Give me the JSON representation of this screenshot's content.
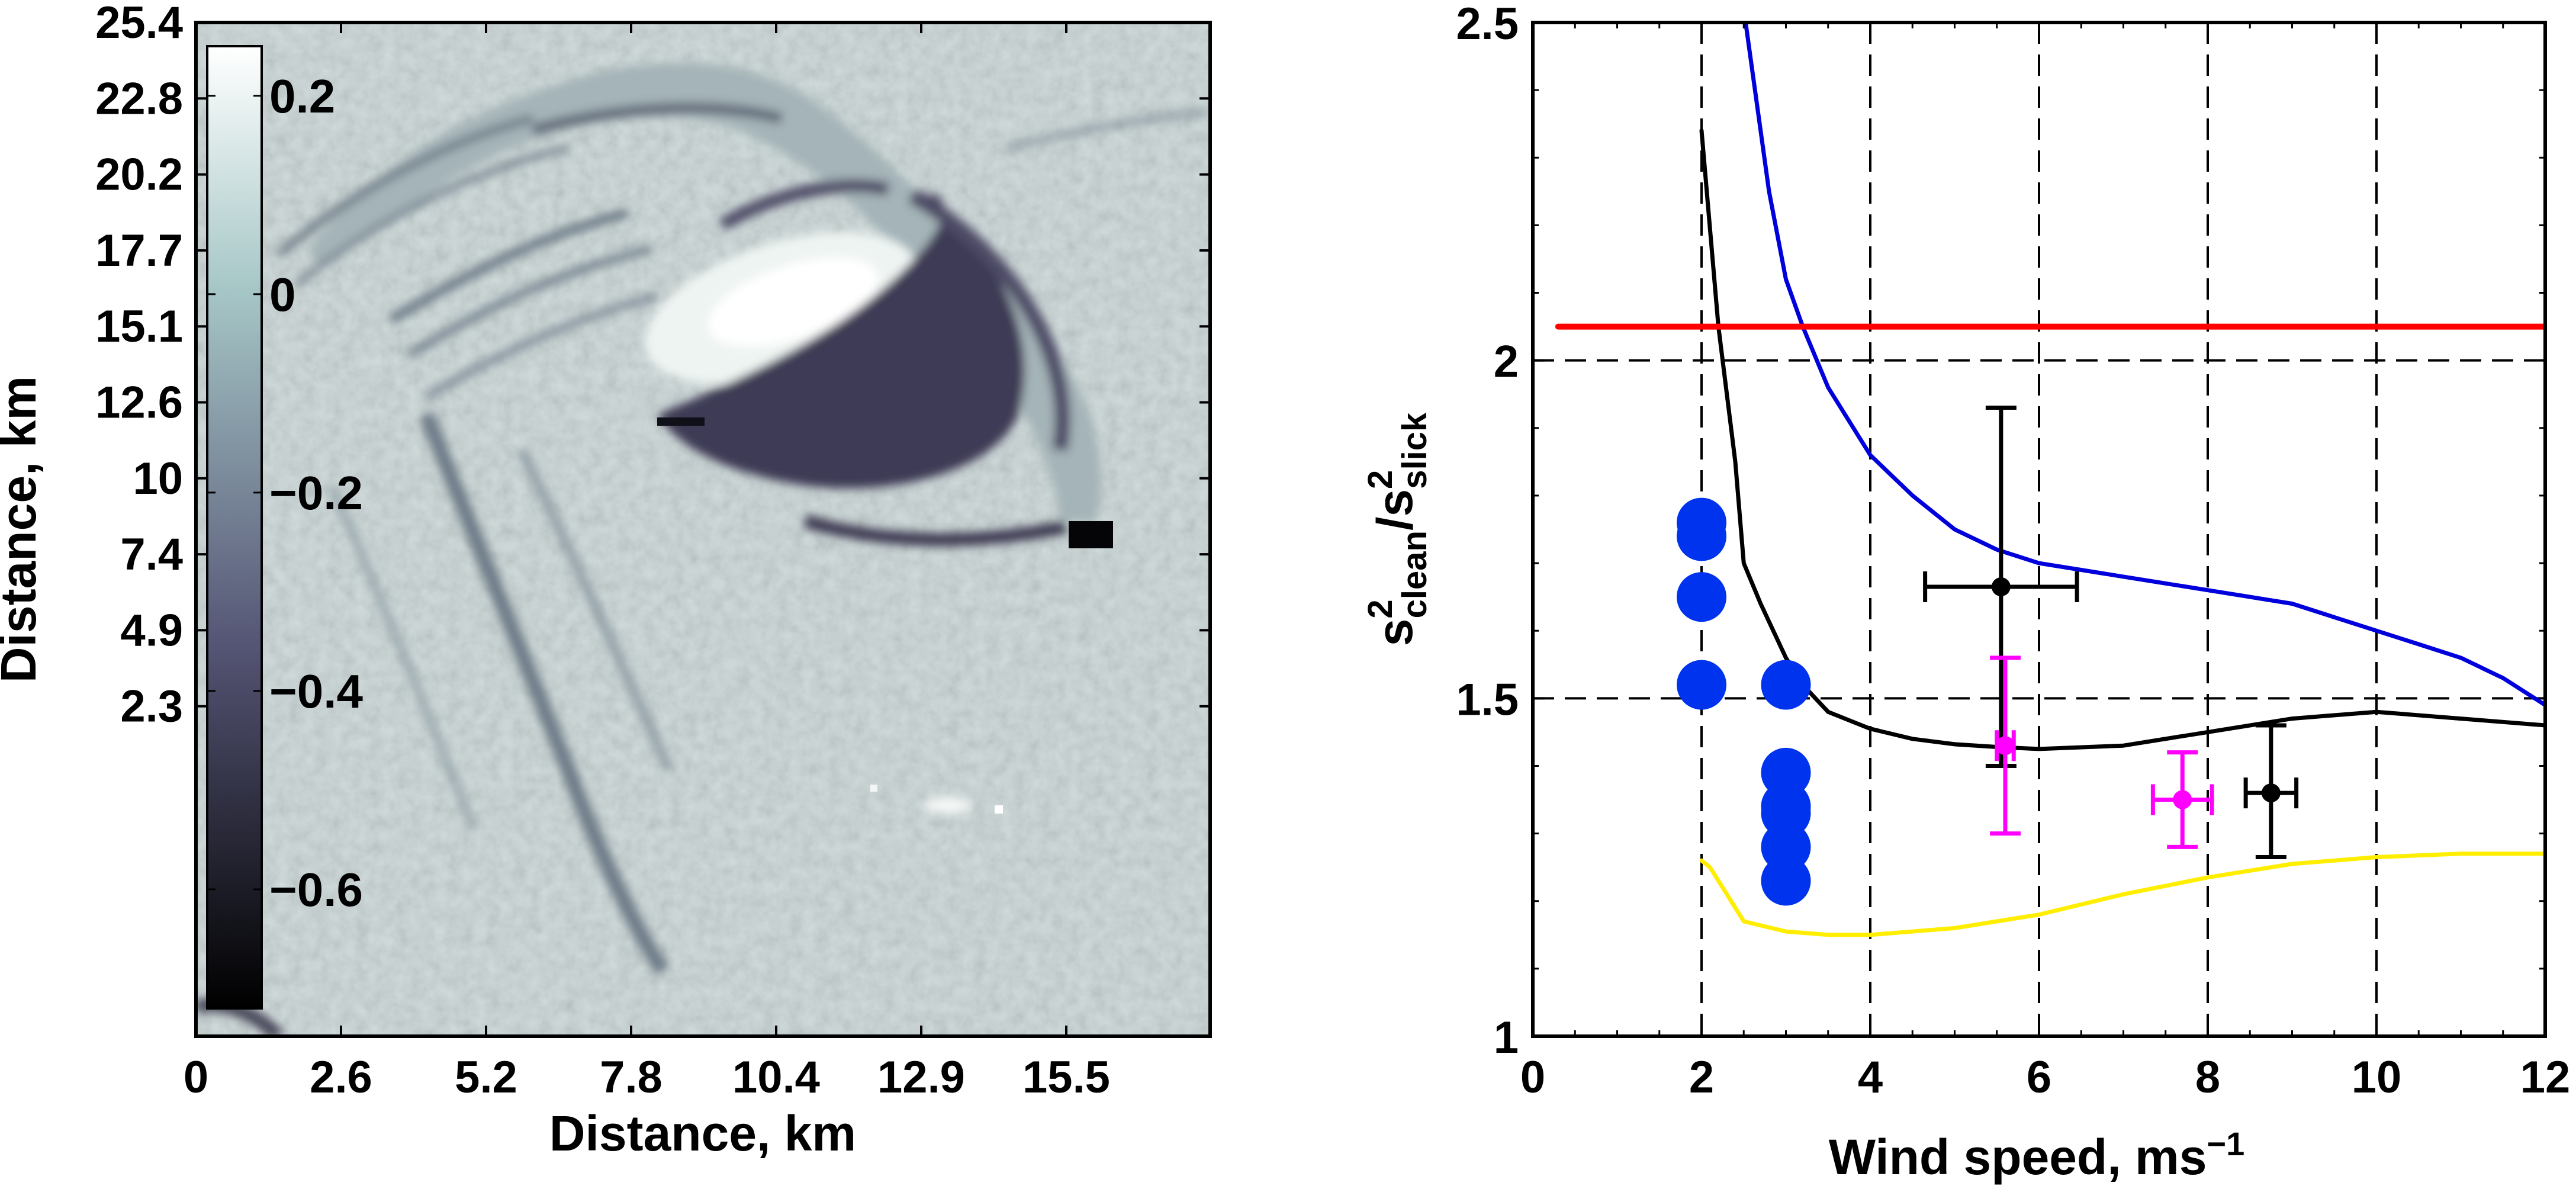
{
  "chart_data": [
    {
      "type": "heatmap",
      "xlabel": "Distance, km",
      "ylabel": "Distance, km",
      "xticks": [
        "0",
        "2.6",
        "5.2",
        "7.8",
        "10.4",
        "12.9",
        "15.5"
      ],
      "yticks": [
        "25.4",
        "22.8",
        "20.2",
        "17.7",
        "15.1",
        "12.6",
        "10",
        "7.4",
        "4.9",
        "2.3"
      ],
      "colorbar": {
        "ticks": [
          "0.2",
          "0",
          "−0.2",
          "−0.4",
          "−0.6"
        ],
        "tick_values": [
          0.2,
          0,
          -0.2,
          -0.4,
          -0.6
        ],
        "range": [
          -0.72,
          0.25
        ],
        "colormap": "bone"
      },
      "features": [
        {
          "kind": "outer-slick-band",
          "value": -0.3
        },
        {
          "kind": "inner-bright-lobe",
          "value": 0.18
        },
        {
          "kind": "dark-crescent",
          "value": -0.55
        },
        {
          "kind": "diagonal-streak",
          "value": -0.4
        },
        {
          "kind": "dark-spot",
          "value": -0.72
        }
      ]
    },
    {
      "type": "line",
      "xlabel": "Wind speed, ms",
      "xlabel_sup": "−1",
      "ylabel_parts": {
        "s": "s",
        "sup": "2",
        "sub_clean": "clean",
        "slash": "/",
        "sub_slick": "slick"
      },
      "xlim": [
        0,
        12
      ],
      "ylim": [
        1,
        2.5
      ],
      "xticks": [
        "0",
        "2",
        "4",
        "6",
        "8",
        "10",
        "12"
      ],
      "xtick_values": [
        0,
        2,
        4,
        6,
        8,
        10,
        12
      ],
      "yticks": [
        "1",
        "1.5",
        "2",
        "2.5"
      ],
      "ytick_values": [
        1,
        1.5,
        2,
        2.5
      ],
      "grid": "dashed",
      "series": [
        {
          "color": "#0000dd",
          "style": "line",
          "x": [
            2.5,
            2.8,
            3.0,
            3.2,
            3.5,
            4.0,
            4.5,
            5.0,
            5.5,
            6.0,
            6.5,
            7.0,
            7.5,
            8.0,
            8.5,
            9.0,
            9.5,
            10.0,
            10.5,
            11.0,
            11.5,
            12.0
          ],
          "y": [
            2.52,
            2.25,
            2.12,
            2.05,
            1.96,
            1.86,
            1.8,
            1.75,
            1.72,
            1.7,
            1.69,
            1.68,
            1.67,
            1.66,
            1.65,
            1.64,
            1.62,
            1.6,
            1.58,
            1.56,
            1.53,
            1.49
          ]
        },
        {
          "color": "#000000",
          "style": "line",
          "x": [
            2.0,
            2.2,
            2.4,
            2.5,
            2.7,
            3.0,
            3.2,
            3.5,
            4.0,
            4.5,
            5.0,
            5.5,
            6.0,
            7.0,
            8.0,
            9.0,
            10.0,
            11.0,
            12.0
          ],
          "y": [
            2.34,
            2.05,
            1.85,
            1.7,
            1.64,
            1.56,
            1.52,
            1.48,
            1.455,
            1.44,
            1.432,
            1.428,
            1.425,
            1.43,
            1.45,
            1.47,
            1.48,
            1.47,
            1.46
          ]
        },
        {
          "color": "#ffee00",
          "style": "line",
          "x": [
            2.0,
            2.1,
            2.3,
            2.5,
            3.0,
            3.5,
            4.0,
            5.0,
            6.0,
            7.0,
            8.0,
            9.0,
            10.0,
            11.0,
            12.0
          ],
          "y": [
            1.26,
            1.25,
            1.21,
            1.17,
            1.155,
            1.15,
            1.15,
            1.16,
            1.18,
            1.21,
            1.235,
            1.255,
            1.265,
            1.27,
            1.27
          ]
        },
        {
          "color": "#ff0000",
          "style": "line",
          "x": [
            0.3,
            12.0
          ],
          "y": [
            2.05,
            2.05
          ]
        },
        {
          "color": "#0033ee",
          "style": "dots",
          "x": [
            2,
            2,
            2,
            2,
            3,
            3,
            3,
            3,
            3,
            3
          ],
          "y": [
            1.76,
            1.74,
            1.65,
            1.52,
            1.52,
            1.39,
            1.34,
            1.33,
            1.28,
            1.23
          ]
        }
      ],
      "errorbars": [
        {
          "color": "#000000",
          "x": 5.55,
          "y": 1.665,
          "xerr": [
            4.65,
            6.45
          ],
          "yerr": [
            1.4,
            1.93
          ]
        },
        {
          "color": "#000000",
          "x": 8.75,
          "y": 1.36,
          "xerr": [
            8.45,
            9.05
          ],
          "yerr": [
            1.265,
            1.46
          ]
        },
        {
          "color": "#ff00ff",
          "x": 5.6,
          "y": 1.43,
          "xerr": [
            5.5,
            5.7
          ],
          "yerr": [
            1.3,
            1.56
          ]
        },
        {
          "color": "#ff00ff",
          "x": 7.7,
          "y": 1.35,
          "xerr": [
            7.35,
            8.05
          ],
          "yerr": [
            1.28,
            1.42
          ]
        }
      ]
    }
  ]
}
